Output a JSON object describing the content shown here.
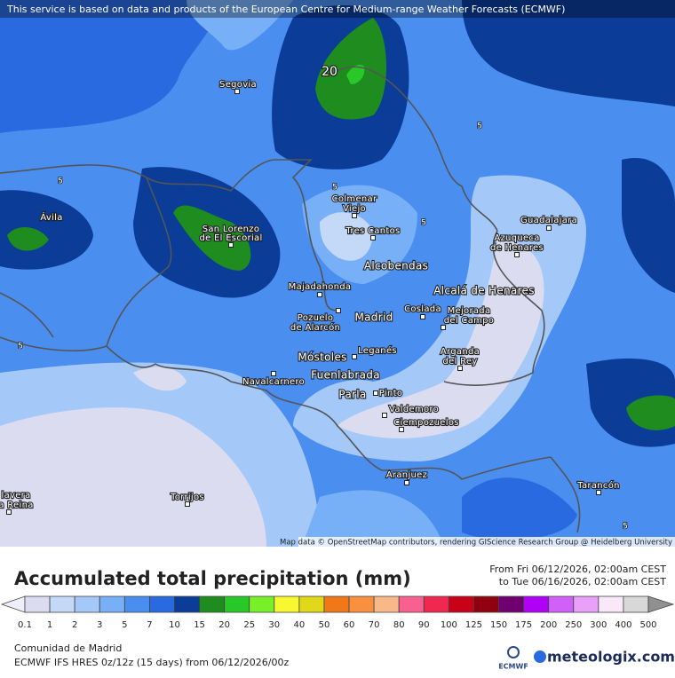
{
  "notice": "This service is based on data and products of the European Centre for Medium-range Weather Forecasts (ECMWF)",
  "places": [
    {
      "lines": [
        "Segovia"
      ]
    },
    {
      "lines": [
        "Ávila"
      ]
    },
    {
      "lines": [
        "San Lorenzo",
        "de El Escorial"
      ]
    },
    {
      "lines": [
        "Colmenar",
        "Viejo"
      ]
    },
    {
      "lines": [
        "Tres Cantos"
      ]
    },
    {
      "lines": [
        "Alcobendas"
      ]
    },
    {
      "lines": [
        "Majadahonda"
      ]
    },
    {
      "lines": [
        "Pozuelo",
        "de Alarcón"
      ]
    },
    {
      "lines": [
        "Madrid"
      ]
    },
    {
      "lines": [
        "Coslada"
      ]
    },
    {
      "lines": [
        "Mejorada",
        "del Campo"
      ]
    },
    {
      "lines": [
        "Alcalá de Henares"
      ]
    },
    {
      "lines": [
        "Guadalajara"
      ]
    },
    {
      "lines": [
        "Azuqueca",
        "de Henares"
      ]
    },
    {
      "lines": [
        "Leganés"
      ]
    },
    {
      "lines": [
        "Móstoles"
      ]
    },
    {
      "lines": [
        "Arganda",
        "del Rey"
      ]
    },
    {
      "lines": [
        "Navalcarnero"
      ]
    },
    {
      "lines": [
        "Fuenlabrada"
      ]
    },
    {
      "lines": [
        "Parla"
      ]
    },
    {
      "lines": [
        "Pinto"
      ]
    },
    {
      "lines": [
        "Valdemoro"
      ]
    },
    {
      "lines": [
        "Ciempozuelos"
      ]
    },
    {
      "lines": [
        "Aranjuez"
      ]
    },
    {
      "lines": [
        "Torrijos"
      ]
    },
    {
      "lines": [
        "Tarancón"
      ]
    },
    {
      "lines": [
        "lavera",
        "a Reina"
      ]
    }
  ],
  "contour_labels": [
    20,
    5,
    5,
    5,
    5,
    5,
    5
  ],
  "attribution": "Map data © OpenStreetMap contributors, rendering GIScience Research Group @ Heidelberg University",
  "legend": {
    "title": "Accumulated total precipitation (mm)",
    "from": "From Fri 06/12/2026, 02:00am CEST",
    "to": "to Tue 06/16/2026, 02:00am CEST",
    "levels": [
      0.1,
      1,
      2,
      3,
      5,
      7,
      10,
      15,
      20,
      25,
      30,
      40,
      50,
      60,
      70,
      80,
      90,
      100,
      125,
      150,
      175,
      200,
      250,
      300,
      400,
      500
    ],
    "colors": [
      "#eeeef8",
      "#dcdcf0",
      "#c4d8f8",
      "#a4c8f8",
      "#78b0f8",
      "#4a8ef0",
      "#2a6ae0",
      "#0a3c98",
      "#1e8c1e",
      "#28c828",
      "#78f028",
      "#f8f830",
      "#e0d818",
      "#f07818",
      "#f89040",
      "#f8b888",
      "#f86090",
      "#f02850",
      "#c80018",
      "#900010",
      "#700070",
      "#b000f8",
      "#d060f8",
      "#e8a0f8",
      "#f8e8f8",
      "#d8d8d8",
      "#909090"
    ]
  },
  "footer": {
    "region": "Comunidad de Madrid",
    "model": "ECMWF IFS HRES 0z/12z (15 days) from 06/12/2026/00z",
    "ecmwf": "ECMWF",
    "brand": "meteologix.com"
  }
}
